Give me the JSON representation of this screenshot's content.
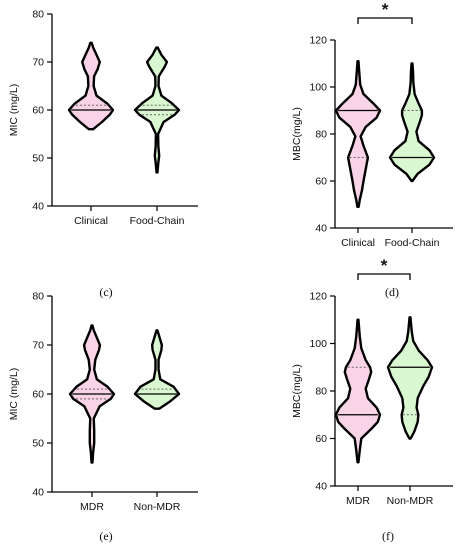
{
  "colors": {
    "group1": "#f9d3e6",
    "group2": "#d9f7d0",
    "outline": "#000000",
    "quartile": "#666666"
  },
  "chart_data": [
    {
      "type": "violin",
      "panel": "top-left",
      "letter": "(c)",
      "xlabel": "",
      "ylabel": "MIC (mg/L)",
      "ylim": [
        40,
        80
      ],
      "yticks": [
        40,
        50,
        60,
        70,
        80
      ],
      "categories": [
        "Clinical",
        "Food-Chain"
      ],
      "significance": "",
      "violins": [
        {
          "min": 56,
          "max": 74,
          "median": 60,
          "q1": 60,
          "q3": 61,
          "density": [
            [
              56,
              0.1
            ],
            [
              57.5,
              0.5
            ],
            [
              59,
              0.85
            ],
            [
              60,
              1
            ],
            [
              61.3,
              0.75
            ],
            [
              63,
              0.25
            ],
            [
              65,
              0.12
            ],
            [
              67,
              0.14
            ],
            [
              68.5,
              0.3
            ],
            [
              70,
              0.4
            ],
            [
              71.5,
              0.25
            ],
            [
              73,
              0.1
            ],
            [
              74,
              0.03
            ]
          ]
        },
        {
          "min": 47,
          "max": 73,
          "median": 60,
          "q1": 59,
          "q3": 61,
          "density": [
            [
              47,
              0.02
            ],
            [
              49,
              0.06
            ],
            [
              50.5,
              0.1
            ],
            [
              52.5,
              0.06
            ],
            [
              55,
              0.05
            ],
            [
              57.5,
              0.3
            ],
            [
              59,
              0.8
            ],
            [
              60,
              1
            ],
            [
              61.5,
              0.65
            ],
            [
              63,
              0.2
            ],
            [
              65,
              0.07
            ],
            [
              67,
              0.08
            ],
            [
              69,
              0.35
            ],
            [
              70,
              0.45
            ],
            [
              71.5,
              0.2
            ],
            [
              73,
              0.03
            ]
          ]
        }
      ]
    },
    {
      "type": "violin",
      "panel": "top-right",
      "letter": "(d)",
      "xlabel": "",
      "ylabel": "MBC(mg/L)",
      "ylim": [
        40,
        120
      ],
      "yticks": [
        40,
        60,
        80,
        100,
        120
      ],
      "categories": [
        "Clinical",
        "Food-Chain"
      ],
      "significance": "*",
      "violins": [
        {
          "min": 49,
          "max": 111,
          "median": 90,
          "q1": 70,
          "q3": 90,
          "density": [
            [
              49,
              0.03
            ],
            [
              52,
              0.08
            ],
            [
              56,
              0.18
            ],
            [
              60,
              0.25
            ],
            [
              65,
              0.35
            ],
            [
              70,
              0.45
            ],
            [
              75,
              0.25
            ],
            [
              79,
              0.12
            ],
            [
              83,
              0.35
            ],
            [
              87,
              0.85
            ],
            [
              90,
              1
            ],
            [
              93,
              0.7
            ],
            [
              97,
              0.25
            ],
            [
              101,
              0.1
            ],
            [
              106,
              0.06
            ],
            [
              111,
              0.02
            ]
          ]
        },
        {
          "min": 60,
          "max": 110,
          "median": 70,
          "q1": 70,
          "q3": 90,
          "density": [
            [
              60,
              0.02
            ],
            [
              63,
              0.25
            ],
            [
              67,
              0.8
            ],
            [
              70,
              1
            ],
            [
              73,
              0.8
            ],
            [
              77,
              0.3
            ],
            [
              81,
              0.2
            ],
            [
              85,
              0.35
            ],
            [
              88,
              0.45
            ],
            [
              90,
              0.45
            ],
            [
              93,
              0.3
            ],
            [
              97,
              0.12
            ],
            [
              102,
              0.06
            ],
            [
              106,
              0.05
            ],
            [
              110,
              0.02
            ]
          ]
        }
      ]
    },
    {
      "type": "violin",
      "panel": "bottom-left",
      "letter": "(e)",
      "xlabel": "",
      "ylabel": "MIC (mg/L)",
      "ylim": [
        40,
        80
      ],
      "yticks": [
        40,
        50,
        60,
        70,
        80
      ],
      "categories": [
        "MDR",
        "Non-MDR"
      ],
      "significance": "",
      "violins": [
        {
          "min": 46,
          "max": 74,
          "median": 60,
          "q1": 59,
          "q3": 61,
          "density": [
            [
              46,
              0.02
            ],
            [
              48,
              0.05
            ],
            [
              50,
              0.1
            ],
            [
              52.5,
              0.1
            ],
            [
              55,
              0.08
            ],
            [
              57.5,
              0.35
            ],
            [
              59,
              0.85
            ],
            [
              60,
              1
            ],
            [
              61.5,
              0.7
            ],
            [
              63,
              0.22
            ],
            [
              65,
              0.1
            ],
            [
              67,
              0.15
            ],
            [
              69,
              0.32
            ],
            [
              70,
              0.36
            ],
            [
              71.5,
              0.22
            ],
            [
              73,
              0.08
            ],
            [
              74,
              0.02
            ]
          ]
        },
        {
          "min": 57,
          "max": 73,
          "median": 60,
          "q1": 60,
          "q3": 61,
          "density": [
            [
              57,
              0.1
            ],
            [
              58.5,
              0.6
            ],
            [
              60,
              1
            ],
            [
              61.5,
              0.75
            ],
            [
              63,
              0.15
            ],
            [
              65,
              0.07
            ],
            [
              67,
              0.07
            ],
            [
              69,
              0.2
            ],
            [
              70,
              0.22
            ],
            [
              71.5,
              0.12
            ],
            [
              73,
              0.02
            ]
          ]
        }
      ]
    },
    {
      "type": "violin",
      "panel": "bottom-right",
      "letter": "(f)",
      "xlabel": "",
      "ylabel": "MBC(mg/L)",
      "ylim": [
        40,
        120
      ],
      "yticks": [
        40,
        60,
        80,
        100,
        120
      ],
      "categories": [
        "MDR",
        "Non-MDR"
      ],
      "significance": "*",
      "violins": [
        {
          "min": 50,
          "max": 110,
          "median": 70,
          "q1": 70,
          "q3": 90,
          "density": [
            [
              50,
              0.02
            ],
            [
              55,
              0.08
            ],
            [
              60,
              0.15
            ],
            [
              64,
              0.6
            ],
            [
              67,
              0.9
            ],
            [
              70,
              1
            ],
            [
              73,
              0.85
            ],
            [
              77,
              0.45
            ],
            [
              81,
              0.35
            ],
            [
              85,
              0.5
            ],
            [
              88,
              0.6
            ],
            [
              90,
              0.55
            ],
            [
              93,
              0.35
            ],
            [
              98,
              0.15
            ],
            [
              103,
              0.08
            ],
            [
              110,
              0.02
            ]
          ]
        },
        {
          "min": 60,
          "max": 111,
          "median": 90,
          "q1": 70,
          "q3": 90,
          "density": [
            [
              60,
              0.03
            ],
            [
              63,
              0.2
            ],
            [
              67,
              0.35
            ],
            [
              70,
              0.38
            ],
            [
              73,
              0.3
            ],
            [
              77,
              0.35
            ],
            [
              82,
              0.6
            ],
            [
              86,
              0.85
            ],
            [
              90,
              1
            ],
            [
              93,
              0.8
            ],
            [
              97,
              0.4
            ],
            [
              101,
              0.15
            ],
            [
              105,
              0.08
            ],
            [
              111,
              0.02
            ]
          ]
        }
      ]
    }
  ]
}
